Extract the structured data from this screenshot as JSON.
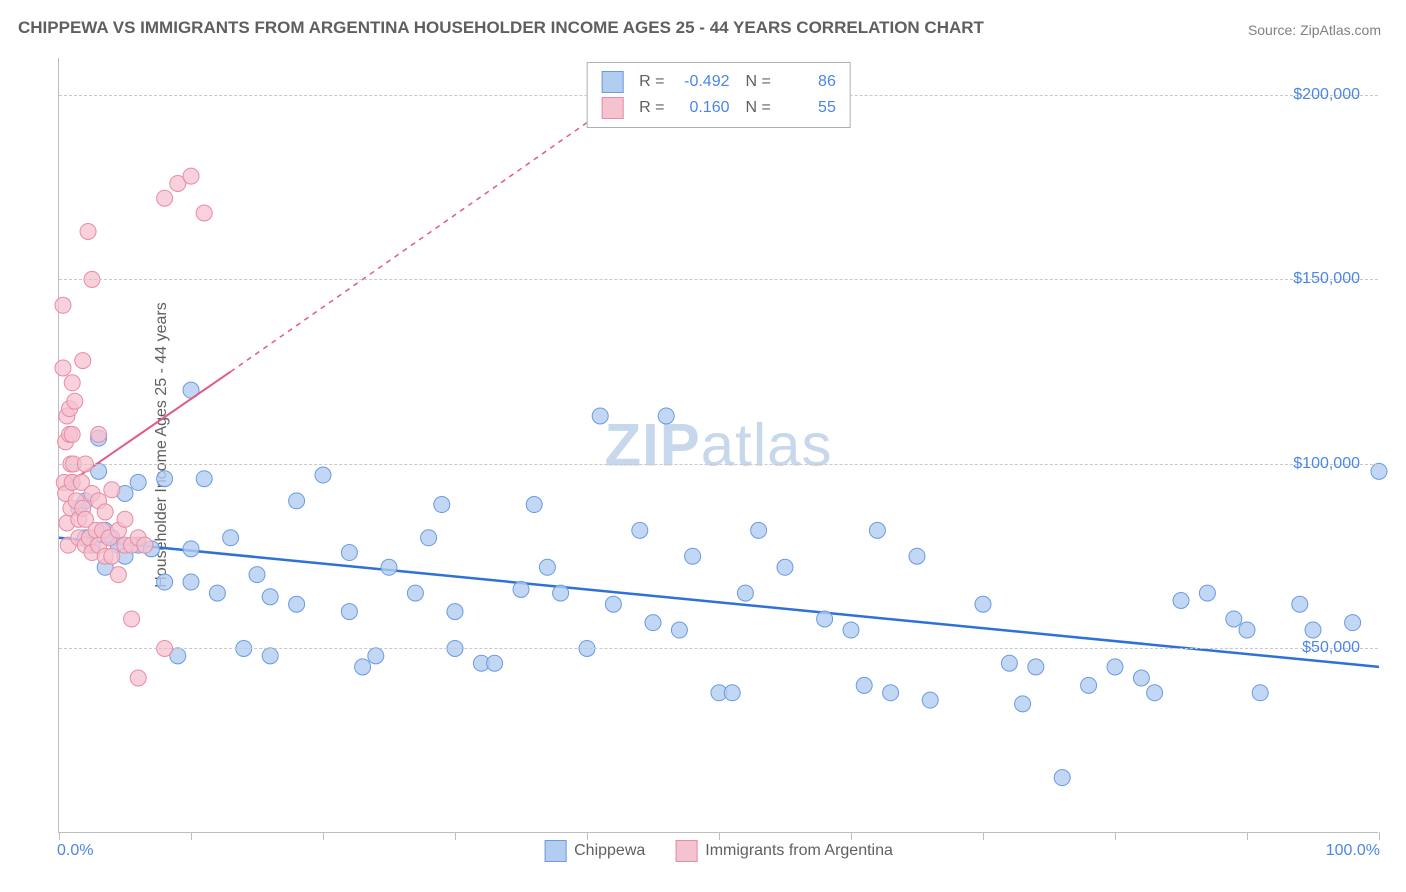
{
  "title": "CHIPPEWA VS IMMIGRANTS FROM ARGENTINA HOUSEHOLDER INCOME AGES 25 - 44 YEARS CORRELATION CHART",
  "source": "Source: ZipAtlas.com",
  "watermark_prefix": "ZIP",
  "watermark_suffix": "atlas",
  "y_axis_title": "Householder Income Ages 25 - 44 years",
  "chart": {
    "type": "scatter",
    "background_color": "#ffffff",
    "grid_color": "#c8c8c8",
    "axis_color": "#bdbdbd",
    "xlim": [
      0,
      100
    ],
    "ylim": [
      0,
      210000
    ],
    "x_tick_positions": [
      0,
      10,
      20,
      30,
      40,
      50,
      60,
      70,
      80,
      90,
      100
    ],
    "x_axis_labels": [
      {
        "pos": 0,
        "text": "0.0%"
      },
      {
        "pos": 100,
        "text": "100.0%"
      }
    ],
    "y_ticks": [
      {
        "value": 50000,
        "label": "$50,000"
      },
      {
        "value": 100000,
        "label": "$100,000"
      },
      {
        "value": 150000,
        "label": "$150,000"
      },
      {
        "value": 200000,
        "label": "$200,000"
      }
    ],
    "series": [
      {
        "name": "Chippewa",
        "fill_color": "#b3cdf1",
        "stroke_color": "#6a9be0",
        "marker_radius": 8,
        "marker_opacity": 0.8,
        "R": "-0.492",
        "N": "86",
        "trend": {
          "x1": 0,
          "y1": 80000,
          "x2": 100,
          "y2": 45000,
          "color": "#2f71d6",
          "width": 2.5,
          "dash": "none"
        },
        "points": [
          [
            1,
            95000
          ],
          [
            1.5,
            88000
          ],
          [
            2,
            90000
          ],
          [
            2,
            80000
          ],
          [
            2.5,
            78000
          ],
          [
            3,
            98000
          ],
          [
            3,
            107000
          ],
          [
            3.5,
            82000
          ],
          [
            3.5,
            72000
          ],
          [
            4,
            80000
          ],
          [
            4.5,
            78000
          ],
          [
            5,
            92000
          ],
          [
            5,
            75000
          ],
          [
            6,
            95000
          ],
          [
            6,
            78000
          ],
          [
            7,
            77000
          ],
          [
            8,
            96000
          ],
          [
            8,
            68000
          ],
          [
            9,
            48000
          ],
          [
            10,
            120000
          ],
          [
            10,
            77000
          ],
          [
            10,
            68000
          ],
          [
            11,
            96000
          ],
          [
            12,
            65000
          ],
          [
            13,
            80000
          ],
          [
            14,
            50000
          ],
          [
            15,
            70000
          ],
          [
            16,
            64000
          ],
          [
            16,
            48000
          ],
          [
            18,
            90000
          ],
          [
            18,
            62000
          ],
          [
            20,
            97000
          ],
          [
            22,
            76000
          ],
          [
            22,
            60000
          ],
          [
            23,
            45000
          ],
          [
            24,
            48000
          ],
          [
            25,
            72000
          ],
          [
            27,
            65000
          ],
          [
            28,
            80000
          ],
          [
            29,
            89000
          ],
          [
            30,
            60000
          ],
          [
            30,
            50000
          ],
          [
            32,
            46000
          ],
          [
            33,
            46000
          ],
          [
            35,
            66000
          ],
          [
            36,
            89000
          ],
          [
            37,
            72000
          ],
          [
            38,
            65000
          ],
          [
            40,
            50000
          ],
          [
            41,
            113000
          ],
          [
            42,
            62000
          ],
          [
            44,
            82000
          ],
          [
            45,
            57000
          ],
          [
            46,
            113000
          ],
          [
            47,
            55000
          ],
          [
            48,
            75000
          ],
          [
            50,
            38000
          ],
          [
            51,
            38000
          ],
          [
            52,
            65000
          ],
          [
            53,
            82000
          ],
          [
            55,
            72000
          ],
          [
            58,
            58000
          ],
          [
            60,
            55000
          ],
          [
            61,
            40000
          ],
          [
            62,
            82000
          ],
          [
            63,
            38000
          ],
          [
            65,
            75000
          ],
          [
            66,
            36000
          ],
          [
            70,
            62000
          ],
          [
            72,
            46000
          ],
          [
            73,
            35000
          ],
          [
            74,
            45000
          ],
          [
            76,
            15000
          ],
          [
            78,
            40000
          ],
          [
            80,
            45000
          ],
          [
            82,
            42000
          ],
          [
            83,
            38000
          ],
          [
            85,
            63000
          ],
          [
            87,
            65000
          ],
          [
            89,
            58000
          ],
          [
            90,
            55000
          ],
          [
            91,
            38000
          ],
          [
            94,
            62000
          ],
          [
            95,
            55000
          ],
          [
            98,
            57000
          ],
          [
            100,
            98000
          ]
        ]
      },
      {
        "name": "Immigrants from Argentina",
        "fill_color": "#f5c2cf",
        "stroke_color": "#e88ba5",
        "marker_radius": 8,
        "marker_opacity": 0.75,
        "R": "0.160",
        "N": "55",
        "trend": {
          "x1": 0,
          "y1": 93000,
          "x2": 13,
          "y2": 125000,
          "color": "#e05a8a",
          "width": 2,
          "dash": "none",
          "extend": {
            "x1": 13,
            "y1": 125000,
            "x2": 45,
            "y2": 205000,
            "dash": "5,5"
          }
        },
        "points": [
          [
            0.3,
            143000
          ],
          [
            0.3,
            126000
          ],
          [
            0.4,
            95000
          ],
          [
            0.5,
            92000
          ],
          [
            0.5,
            106000
          ],
          [
            0.6,
            84000
          ],
          [
            0.6,
            113000
          ],
          [
            0.7,
            78000
          ],
          [
            0.8,
            115000
          ],
          [
            0.8,
            108000
          ],
          [
            0.9,
            100000
          ],
          [
            0.9,
            88000
          ],
          [
            1,
            122000
          ],
          [
            1,
            108000
          ],
          [
            1,
            95000
          ],
          [
            1.1,
            100000
          ],
          [
            1.2,
            117000
          ],
          [
            1.3,
            90000
          ],
          [
            1.5,
            85000
          ],
          [
            1.5,
            80000
          ],
          [
            1.7,
            95000
          ],
          [
            1.8,
            128000
          ],
          [
            1.8,
            88000
          ],
          [
            2,
            78000
          ],
          [
            2,
            85000
          ],
          [
            2,
            100000
          ],
          [
            2.2,
            163000
          ],
          [
            2.3,
            80000
          ],
          [
            2.5,
            150000
          ],
          [
            2.5,
            92000
          ],
          [
            2.5,
            76000
          ],
          [
            2.8,
            82000
          ],
          [
            3,
            108000
          ],
          [
            3,
            90000
          ],
          [
            3,
            78000
          ],
          [
            3.3,
            82000
          ],
          [
            3.5,
            75000
          ],
          [
            3.5,
            87000
          ],
          [
            3.8,
            80000
          ],
          [
            4,
            93000
          ],
          [
            4,
            75000
          ],
          [
            4.5,
            82000
          ],
          [
            4.5,
            70000
          ],
          [
            5,
            78000
          ],
          [
            5,
            85000
          ],
          [
            5.5,
            78000
          ],
          [
            5.5,
            58000
          ],
          [
            6,
            80000
          ],
          [
            6,
            42000
          ],
          [
            6.5,
            78000
          ],
          [
            8,
            172000
          ],
          [
            8,
            50000
          ],
          [
            9,
            176000
          ],
          [
            10,
            178000
          ],
          [
            11,
            168000
          ]
        ]
      }
    ]
  },
  "legend_bottom": [
    {
      "label": "Chippewa",
      "fill": "#b3cdf1",
      "stroke": "#6a9be0"
    },
    {
      "label": "Immigrants from Argentina",
      "fill": "#f5c2cf",
      "stroke": "#e88ba5"
    }
  ]
}
